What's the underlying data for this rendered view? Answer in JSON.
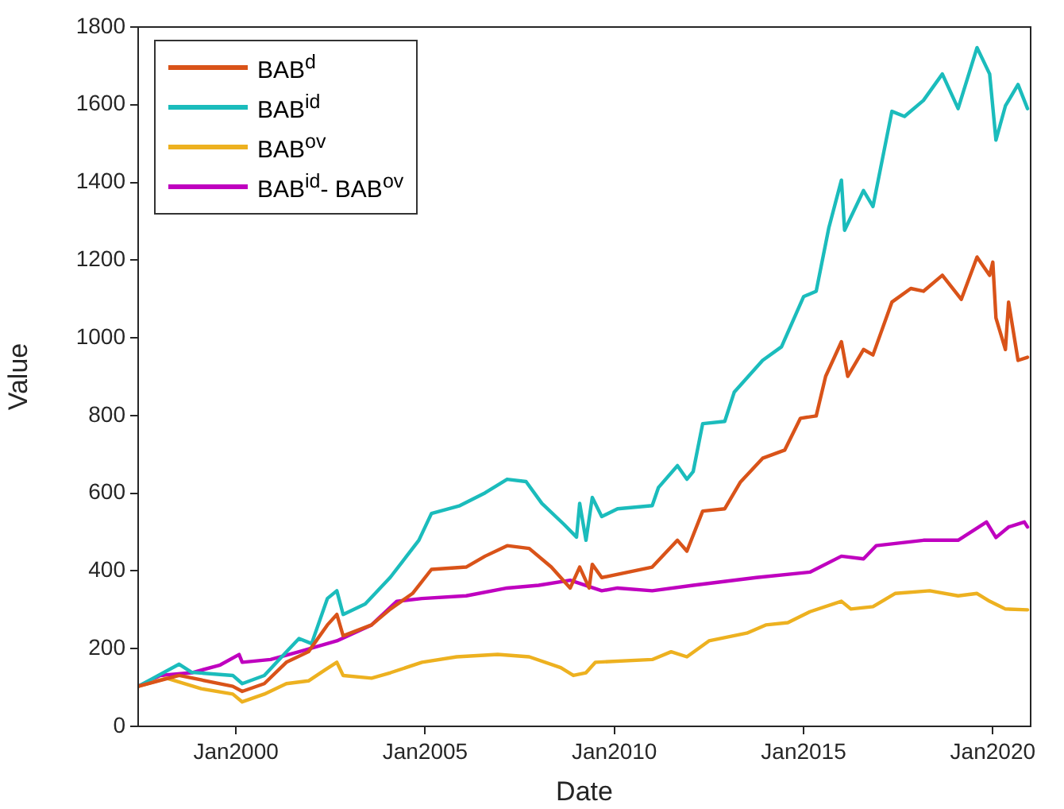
{
  "chart_data": {
    "type": "line",
    "xlabel": "Date",
    "ylabel": "Value",
    "legend": "top left",
    "grid": false,
    "marker": "none",
    "line_style": "solid",
    "xlim": [
      "1997-06",
      "2021-01"
    ],
    "xticks": [
      {
        "value": "2000-01",
        "label": "Jan2000"
      },
      {
        "value": "2005-01",
        "label": "Jan2005"
      },
      {
        "value": "2010-01",
        "label": "Jan2010"
      },
      {
        "value": "2015-01",
        "label": "Jan2015"
      },
      {
        "value": "2020-01",
        "label": "Jan2020"
      }
    ],
    "ylim": [
      0,
      1800
    ],
    "yticks": [
      0,
      200,
      400,
      600,
      800,
      1000,
      1200,
      1400,
      1600,
      1800
    ],
    "series": [
      {
        "name": "BAB$^{d}$",
        "color": "#d95319",
        "x": [
          "1997-06",
          "1998-07",
          "1999-12",
          "2000-03",
          "2000-10",
          "2001-05",
          "2001-12",
          "2002-06",
          "2002-09",
          "2002-11",
          "2003-08",
          "2004-02",
          "2004-09",
          "2005-03",
          "2006-02",
          "2006-08",
          "2007-03",
          "2007-10",
          "2008-05",
          "2008-11",
          "2009-02",
          "2009-05",
          "2009-06",
          "2009-09",
          "2011-01",
          "2011-09",
          "2011-12",
          "2012-05",
          "2012-12",
          "2013-05",
          "2013-12",
          "2014-07",
          "2014-12",
          "2015-05",
          "2015-08",
          "2016-01",
          "2016-03",
          "2016-08",
          "2016-11",
          "2017-05",
          "2017-11",
          "2018-03",
          "2018-09",
          "2019-03",
          "2019-08",
          "2019-12",
          "2020-01",
          "2020-02",
          "2020-05",
          "2020-06",
          "2020-09",
          "2020-12"
        ],
        "values": [
          103,
          131,
          103,
          90,
          110,
          165,
          192,
          261,
          288,
          233,
          261,
          302,
          342,
          404,
          410,
          438,
          465,
          458,
          410,
          356,
          410,
          356,
          417,
          383,
          410,
          479,
          451,
          554,
          560,
          629,
          690,
          711,
          793,
          799,
          901,
          990,
          901,
          970,
          956,
          1092,
          1127,
          1120,
          1161,
          1099,
          1208,
          1161,
          1195,
          1051,
          970,
          1092,
          942,
          950
        ]
      },
      {
        "name": "BAB$^{id}$",
        "color": "#1bbcbc",
        "x": [
          "1997-06",
          "1998-07",
          "1998-11",
          "1999-12",
          "2000-03",
          "2000-10",
          "2001-05",
          "2001-09",
          "2002-01",
          "2002-06",
          "2002-09",
          "2002-11",
          "2003-06",
          "2004-02",
          "2004-11",
          "2005-03",
          "2005-12",
          "2006-08",
          "2007-03",
          "2007-09",
          "2008-02",
          "2008-09",
          "2009-01",
          "2009-02",
          "2009-04",
          "2009-06",
          "2009-09",
          "2010-02",
          "2011-01",
          "2011-03",
          "2011-09",
          "2011-12",
          "2012-02",
          "2012-05",
          "2012-12",
          "2013-03",
          "2013-12",
          "2014-06",
          "2015-01",
          "2015-05",
          "2015-09",
          "2016-01",
          "2016-02",
          "2016-08",
          "2016-11",
          "2017-05",
          "2017-09",
          "2018-03",
          "2018-09",
          "2019-02",
          "2019-08",
          "2019-12",
          "2020-02",
          "2020-05",
          "2020-09",
          "2020-12"
        ],
        "values": [
          103,
          160,
          139,
          131,
          110,
          131,
          192,
          226,
          213,
          329,
          349,
          288,
          315,
          384,
          479,
          548,
          568,
          601,
          636,
          630,
          574,
          520,
          487,
          574,
          479,
          589,
          540,
          560,
          568,
          615,
          671,
          636,
          656,
          779,
          785,
          860,
          942,
          977,
          1106,
          1120,
          1283,
          1406,
          1277,
          1379,
          1338,
          1583,
          1570,
          1611,
          1679,
          1590,
          1747,
          1679,
          1509,
          1597,
          1652,
          1590
        ]
      },
      {
        "name": "BAB$^{ov}$",
        "color": "#edb120",
        "x": [
          "1997-06",
          "1998-03",
          "1999-02",
          "1999-12",
          "2000-03",
          "2000-10",
          "2001-05",
          "2001-12",
          "2002-05",
          "2002-09",
          "2002-11",
          "2003-08",
          "2004-02",
          "2004-12",
          "2005-11",
          "2006-12",
          "2007-10",
          "2008-08",
          "2008-12",
          "2009-04",
          "2009-07",
          "2011-01",
          "2011-07",
          "2011-12",
          "2012-07",
          "2013-07",
          "2014-01",
          "2014-08",
          "2015-03",
          "2016-01",
          "2016-04",
          "2016-11",
          "2017-06",
          "2018-05",
          "2019-02",
          "2019-08",
          "2019-12",
          "2020-05",
          "2020-12"
        ],
        "values": [
          103,
          124,
          97,
          83,
          63,
          83,
          110,
          117,
          144,
          165,
          131,
          124,
          138,
          165,
          179,
          185,
          179,
          151,
          131,
          138,
          165,
          172,
          192,
          179,
          220,
          240,
          261,
          267,
          295,
          322,
          302,
          308,
          342,
          349,
          336,
          342,
          322,
          302,
          300
        ]
      },
      {
        "name": "BAB$^{id}$- BAB$^{ov}$",
        "color": "#bf00bf",
        "x": [
          "1997-06",
          "1998-01",
          "1998-11",
          "1999-08",
          "2000-02",
          "2000-03",
          "2000-12",
          "2001-09",
          "2002-09",
          "2003-08",
          "2004-04",
          "2004-12",
          "2006-02",
          "2007-03",
          "2008-01",
          "2008-11",
          "2009-09",
          "2010-02",
          "2011-01",
          "2012-02",
          "2013-10",
          "2015-03",
          "2016-01",
          "2016-08",
          "2016-12",
          "2018-03",
          "2019-02",
          "2019-11",
          "2020-02",
          "2020-06",
          "2020-11",
          "2020-12"
        ],
        "values": [
          103,
          131,
          138,
          158,
          185,
          165,
          172,
          192,
          220,
          261,
          322,
          329,
          336,
          356,
          363,
          376,
          349,
          356,
          349,
          363,
          383,
          397,
          438,
          431,
          465,
          479,
          479,
          526,
          486,
          513,
          526,
          513
        ]
      }
    ]
  }
}
